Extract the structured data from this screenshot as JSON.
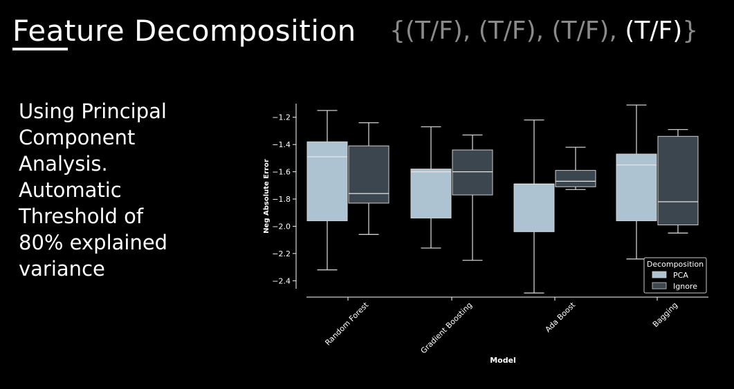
{
  "slide": {
    "title": "Feature Decomposition",
    "tf_sequence": [
      "{(T/F), ",
      "(T/F), ",
      "(T/F), ",
      "(T/F)",
      "}"
    ],
    "tf_active_index": 3,
    "description_lines": [
      "Using Principal",
      "Component",
      "Analysis.",
      "Automatic",
      "Threshold of",
      "80% explained",
      "variance"
    ]
  },
  "colors": {
    "background": "#000000",
    "pca": "#aec3d2",
    "ignore": "#3b464f",
    "whisker": "#d0d0d0",
    "median": "#e6e6e6",
    "axis": "#ffffff",
    "tf_inactive": "#8a8a8a"
  },
  "chart_data": {
    "type": "box",
    "xlabel": "Model",
    "ylabel": "Neg Absolute Error",
    "categories": [
      "Random Forest",
      "Gradient Boosting",
      "Ada Boost",
      "Bagging"
    ],
    "ylim": [
      -2.52,
      -1.1
    ],
    "yticks": [
      -1.2,
      -1.4,
      -1.6,
      -1.8,
      -2.0,
      -2.2,
      -2.4
    ],
    "legend": {
      "title": "Decomposition",
      "position": "bottom-right",
      "entries": [
        "PCA",
        "Ignore"
      ]
    },
    "series": [
      {
        "name": "PCA",
        "boxes": [
          {
            "min": -2.32,
            "q1": -1.96,
            "median": -1.49,
            "q3": -1.38,
            "max": -1.15
          },
          {
            "min": -2.16,
            "q1": -1.94,
            "median": -1.6,
            "q3": -1.58,
            "max": -1.27
          },
          {
            "min": -2.49,
            "q1": -2.04,
            "median": -1.69,
            "q3": -1.69,
            "max": -1.22
          },
          {
            "min": -2.24,
            "q1": -1.96,
            "median": -1.55,
            "q3": -1.47,
            "max": -1.11
          }
        ]
      },
      {
        "name": "Ignore",
        "boxes": [
          {
            "min": -2.06,
            "q1": -1.83,
            "median": -1.76,
            "q3": -1.41,
            "max": -1.24
          },
          {
            "min": -2.25,
            "q1": -1.77,
            "median": -1.6,
            "q3": -1.44,
            "max": -1.33
          },
          {
            "min": -1.73,
            "q1": -1.71,
            "median": -1.67,
            "q3": -1.59,
            "max": -1.42
          },
          {
            "min": -2.05,
            "q1": -1.99,
            "median": -1.82,
            "q3": -1.34,
            "max": -1.29
          }
        ]
      }
    ]
  }
}
